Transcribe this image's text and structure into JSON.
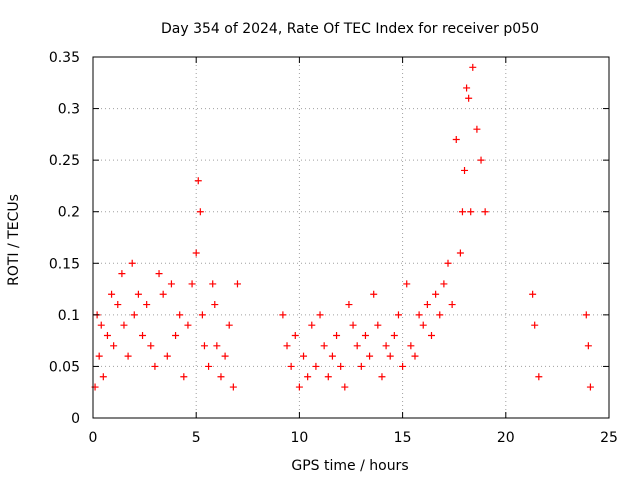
{
  "chart_data": {
    "type": "scatter",
    "title": "Day 354 of 2024, Rate Of TEC Index for receiver p050",
    "xlabel": "GPS time / hours",
    "ylabel": "ROTI / TECUs",
    "xlim": [
      0,
      25
    ],
    "ylim": [
      0,
      0.35
    ],
    "xticks": [
      0,
      5,
      10,
      15,
      20,
      25
    ],
    "xtick_labels": [
      "0",
      "5",
      "10",
      "15",
      "20",
      "25"
    ],
    "yticks": [
      0,
      0.05,
      0.1,
      0.15,
      0.2,
      0.25,
      0.3,
      0.35
    ],
    "ytick_labels": [
      "0",
      "0.05",
      "0.1",
      "0.15",
      "0.2",
      "0.25",
      "0.3",
      "0.35"
    ],
    "grid": true,
    "marker": "+",
    "marker_color": "#ff0000",
    "series": [
      {
        "name": "ROTI",
        "x": [
          0.1,
          0.2,
          0.3,
          0.4,
          0.5,
          0.7,
          0.9,
          1.0,
          1.2,
          1.4,
          1.5,
          1.7,
          1.9,
          2.0,
          2.2,
          2.4,
          2.6,
          2.8,
          3.0,
          3.2,
          3.4,
          3.6,
          3.8,
          4.0,
          4.2,
          4.4,
          4.6,
          4.8,
          5.0,
          5.1,
          5.2,
          5.3,
          5.4,
          5.6,
          5.8,
          5.9,
          6.0,
          6.2,
          6.4,
          6.6,
          6.8,
          7.0,
          9.2,
          9.4,
          9.6,
          9.8,
          10.0,
          10.2,
          10.4,
          10.6,
          10.8,
          11.0,
          11.2,
          11.4,
          11.6,
          11.8,
          12.0,
          12.2,
          12.4,
          12.6,
          12.8,
          13.0,
          13.2,
          13.4,
          13.6,
          13.8,
          14.0,
          14.2,
          14.4,
          14.6,
          14.8,
          15.0,
          15.2,
          15.4,
          15.6,
          15.8,
          16.0,
          16.2,
          16.4,
          16.6,
          16.8,
          17.0,
          17.2,
          17.4,
          17.6,
          17.8,
          17.9,
          18.0,
          18.1,
          18.2,
          18.3,
          18.4,
          18.6,
          18.8,
          19.0,
          21.3,
          21.4,
          21.6,
          23.9,
          24.0,
          24.1
        ],
        "y": [
          0.03,
          0.1,
          0.06,
          0.09,
          0.04,
          0.08,
          0.12,
          0.07,
          0.11,
          0.14,
          0.09,
          0.06,
          0.15,
          0.1,
          0.12,
          0.08,
          0.11,
          0.07,
          0.05,
          0.14,
          0.12,
          0.06,
          0.13,
          0.08,
          0.1,
          0.04,
          0.09,
          0.13,
          0.16,
          0.23,
          0.2,
          0.1,
          0.07,
          0.05,
          0.13,
          0.11,
          0.07,
          0.04,
          0.06,
          0.09,
          0.03,
          0.13,
          0.1,
          0.07,
          0.05,
          0.08,
          0.03,
          0.06,
          0.04,
          0.09,
          0.05,
          0.1,
          0.07,
          0.04,
          0.06,
          0.08,
          0.05,
          0.03,
          0.11,
          0.09,
          0.07,
          0.05,
          0.08,
          0.06,
          0.12,
          0.09,
          0.04,
          0.07,
          0.06,
          0.08,
          0.1,
          0.05,
          0.13,
          0.07,
          0.06,
          0.1,
          0.09,
          0.11,
          0.08,
          0.12,
          0.1,
          0.13,
          0.15,
          0.11,
          0.27,
          0.16,
          0.2,
          0.24,
          0.32,
          0.31,
          0.2,
          0.34,
          0.28,
          0.25,
          0.2,
          0.12,
          0.09,
          0.04,
          0.1,
          0.07,
          0.03
        ]
      }
    ]
  }
}
